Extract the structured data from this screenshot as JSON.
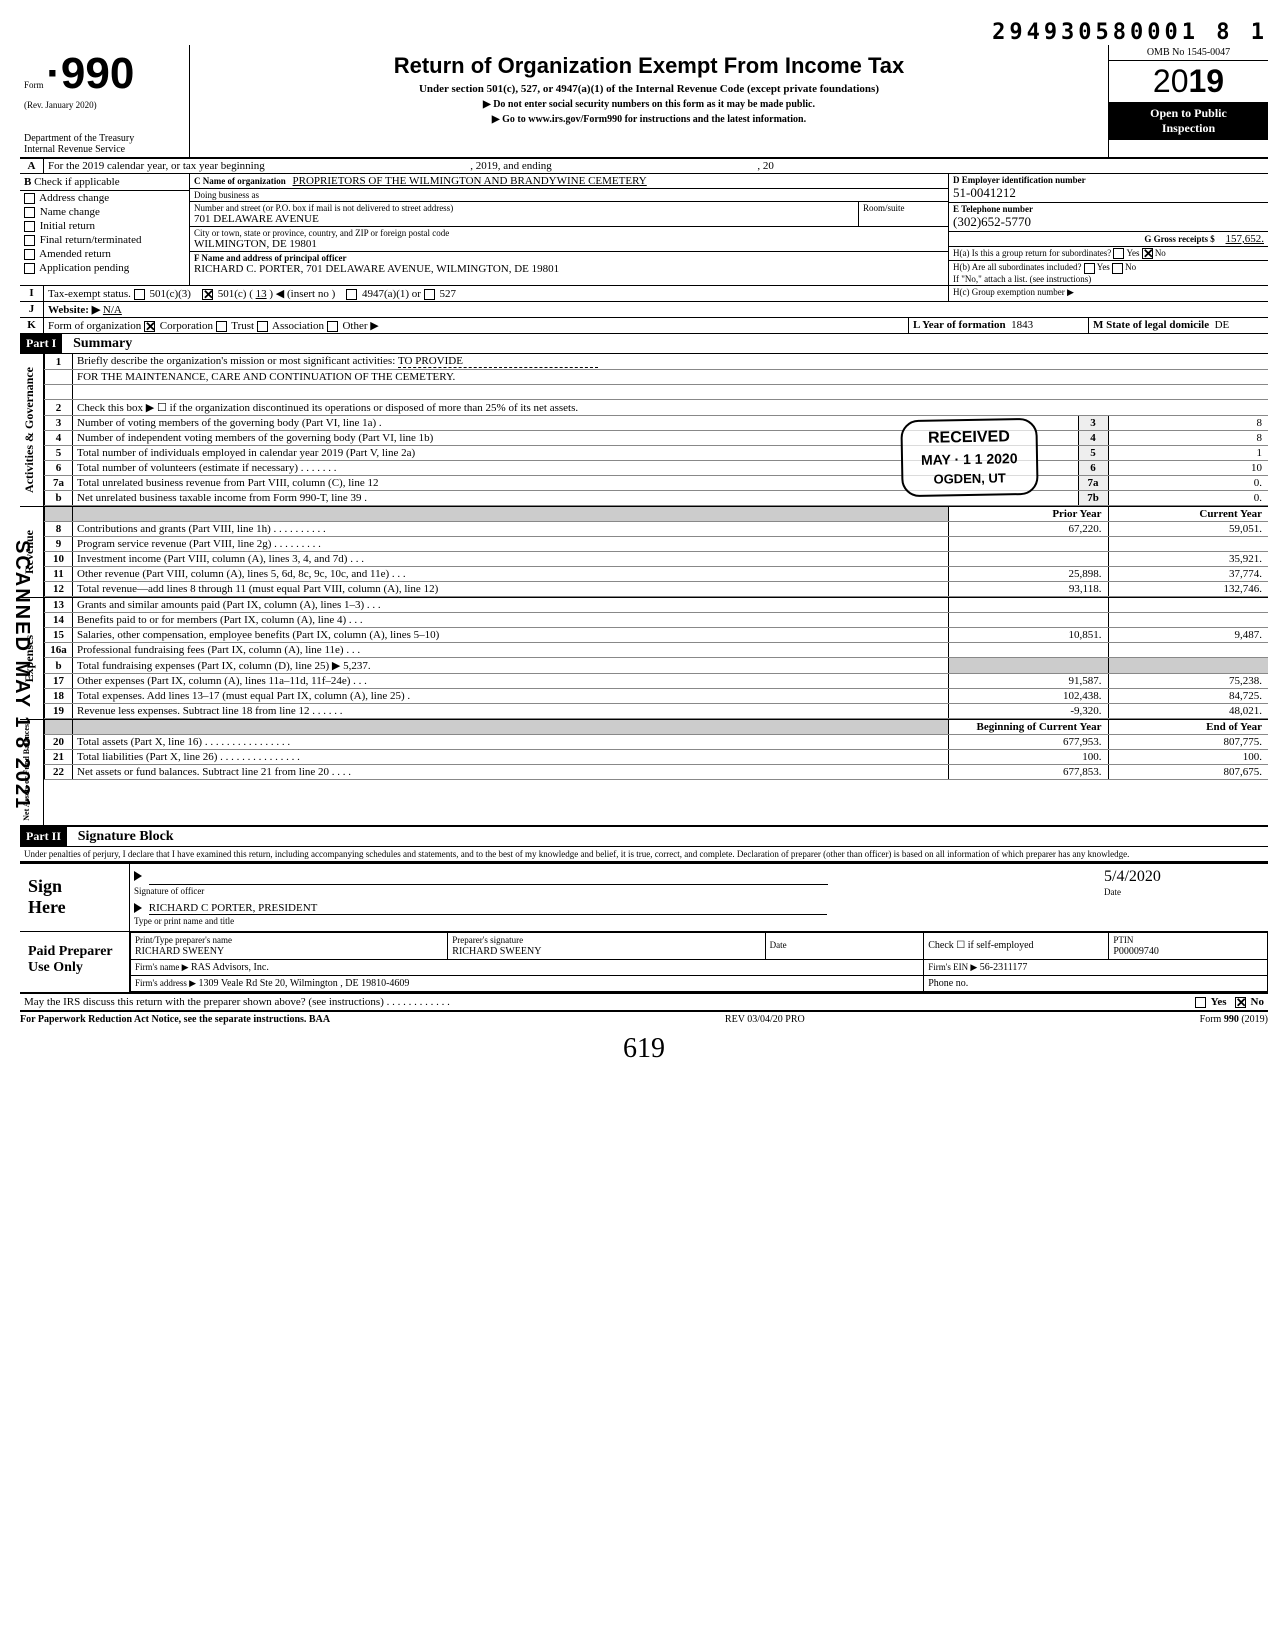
{
  "header_id": "294930580001 8  1",
  "form_number": "990",
  "form_prefix": "Form",
  "rev": "(Rev. January 2020)",
  "dept": "Department of the Treasury\nInternal Revenue Service",
  "title": "Return of Organization Exempt From Income Tax",
  "under": "Under section 501(c), 527, or 4947(a)(1) of the Internal Revenue Code (except private foundations)",
  "sub1": "▶ Do not enter social security numbers on this form as it may be made public.",
  "sub2": "▶ Go to www.irs.gov/Form990 for instructions and the latest information.",
  "omb": "OMB No 1545-0047",
  "year_prefix": "20",
  "year_bold": "19",
  "open_public": "Open to Public\nInspection",
  "rowA": {
    "label": "For the 2019 calendar year, or tax year beginning",
    "mid": ", 2019, and ending",
    "end": ", 20"
  },
  "rowB_label": "Check if applicable",
  "rowB_items": [
    "Address change",
    "Name change",
    "Initial return",
    "Final return/terminated",
    "Amended return",
    "Application pending"
  ],
  "boxC": {
    "lbl": "C Name of organization",
    "val": "PROPRIETORS OF THE WILMINGTON AND BRANDYWINE CEMETERY",
    "dba_lbl": "Doing business as",
    "addr_lbl": "Number and street (or P.O. box if mail is not delivered to street address)",
    "addr": "701 DELAWARE AVENUE",
    "room_lbl": "Room/suite",
    "city_lbl": "City or town, state or province, country, and ZIP or foreign postal code",
    "city": "WILMINGTON, DE 19801",
    "f_lbl": "F Name and address of principal officer",
    "f_val": "RICHARD C. PORTER, 701 DELAWARE AVENUE, WILMINGTON, DE 19801"
  },
  "boxD": {
    "lbl": "D Employer identification number",
    "val": "51-0041212"
  },
  "boxE": {
    "lbl": "E Telephone number",
    "val": "(302)652-5770"
  },
  "boxG": {
    "lbl": "G Gross receipts $",
    "val": "157,652."
  },
  "boxH": {
    "a": "H(a) Is this a group return for subordinates?",
    "b": "H(b) Are all subordinates included?",
    "b2": "If \"No,\" attach a list. (see instructions)",
    "c": "H(c) Group exemption number ▶",
    "yes": "Yes",
    "no": "No"
  },
  "rowI": {
    "lbl": "Tax-exempt status.",
    "c3": "501(c)(3)",
    "c": "501(c) (",
    "cn": "13",
    "insert": ") ◀ (insert no )",
    "a1": "4947(a)(1) or",
    "s527": "527"
  },
  "rowJ": {
    "lbl": "Website: ▶",
    "val": "N/A"
  },
  "rowK": {
    "lbl": "Form of organization",
    "corp": "Corporation",
    "trust": "Trust",
    "assoc": "Association",
    "other": "Other ▶",
    "l": "L Year of formation",
    "lval": "1843",
    "m": "M State of legal domicile",
    "mval": "DE"
  },
  "part1": {
    "hdr": "Part I",
    "title": "Summary"
  },
  "line1": {
    "lbl": "Briefly describe the organization's mission or most significant activities:",
    "val": "TO PROVIDE",
    "val2": "FOR THE MAINTENANCE, CARE AND CONTINUATION OF THE CEMETERY."
  },
  "line2": "Check this box ▶ ☐ if the organization discontinued its operations or disposed of more than 25% of its net assets.",
  "sideA": "Activities & Governance",
  "sideR": "Revenue",
  "sideE": "Expenses",
  "sideN": "Net Assets or\nFund Balances",
  "stamp": {
    "l1": "RECEIVED",
    "l2": "MAY · 1 1 2020",
    "l3": "OGDEN, UT"
  },
  "sidestamp": "SCANNED MAY 1 8 2021",
  "col_prior": "Prior Year",
  "col_current": "Current Year",
  "col_begin": "Beginning of Current Year",
  "col_end": "End of Year",
  "linesAG": [
    {
      "n": "3",
      "t": "Number of voting members of the governing body (Part VI, line 1a) .",
      "b": "3",
      "v": "8"
    },
    {
      "n": "4",
      "t": "Number of independent voting members of the governing body (Part VI, line 1b)",
      "b": "4",
      "v": "8"
    },
    {
      "n": "5",
      "t": "Total number of individuals employed in calendar year 2019 (Part V, line 2a)",
      "b": "5",
      "v": "1"
    },
    {
      "n": "6",
      "t": "Total number of volunteers (estimate if necessary)  . . . . . . .",
      "b": "6",
      "v": "10"
    },
    {
      "n": "7a",
      "t": "Total unrelated business revenue from Part VIII, column (C), line 12",
      "b": "7a",
      "v": "0."
    },
    {
      "n": "b",
      "t": "Net unrelated business taxable income from Form 990-T, line 39  .",
      "b": "7b",
      "v": "0."
    }
  ],
  "linesRev": [
    {
      "n": "8",
      "t": "Contributions and grants (Part VIII, line 1h) . . . . . . . . . .",
      "p": "67,220.",
      "c": "59,051."
    },
    {
      "n": "9",
      "t": "Program service revenue (Part VIII, line 2g)  . . . . . . . . .",
      "p": "",
      "c": ""
    },
    {
      "n": "10",
      "t": "Investment income (Part VIII, column (A), lines 3, 4, and 7d) . . .",
      "p": "",
      "c": "35,921."
    },
    {
      "n": "11",
      "t": "Other revenue (Part VIII, column (A), lines 5, 6d, 8c, 9c, 10c, and 11e) . . .",
      "p": "25,898.",
      "c": "37,774."
    },
    {
      "n": "12",
      "t": "Total revenue—add lines 8 through 11 (must equal Part VIII, column (A), line 12)",
      "p": "93,118.",
      "c": "132,746."
    }
  ],
  "linesExp": [
    {
      "n": "13",
      "t": "Grants and similar amounts paid (Part IX, column (A), lines 1–3) . . .",
      "p": "",
      "c": ""
    },
    {
      "n": "14",
      "t": "Benefits paid to or for members (Part IX, column (A), line 4) . . .",
      "p": "",
      "c": ""
    },
    {
      "n": "15",
      "t": "Salaries, other compensation, employee benefits (Part IX, column (A), lines 5–10)",
      "p": "10,851.",
      "c": "9,487."
    },
    {
      "n": "16a",
      "t": "Professional fundraising fees (Part IX, column (A), line 11e) . . .",
      "p": "",
      "c": ""
    },
    {
      "n": "b",
      "t": "Total fundraising expenses (Part IX, column (D), line 25) ▶   5,237.",
      "p": "shade",
      "c": "shade"
    },
    {
      "n": "17",
      "t": "Other expenses (Part IX, column (A), lines 11a–11d, 11f–24e)  . . .",
      "p": "91,587.",
      "c": "75,238."
    },
    {
      "n": "18",
      "t": "Total expenses. Add lines 13–17 (must equal Part IX, column (A), line 25)  .",
      "p": "102,438.",
      "c": "84,725."
    },
    {
      "n": "19",
      "t": "Revenue less expenses. Subtract line 18 from line 12 . . . . . .",
      "p": "-9,320.",
      "c": "48,021."
    }
  ],
  "linesNet": [
    {
      "n": "20",
      "t": "Total assets (Part X, line 16)  . . . . . . . . . . . . . . . .",
      "p": "677,953.",
      "c": "807,775."
    },
    {
      "n": "21",
      "t": "Total liabilities (Part X, line 26) . . . . . . . . . . . . . . .",
      "p": "100.",
      "c": "100."
    },
    {
      "n": "22",
      "t": "Net assets or fund balances. Subtract line 21 from line 20  . . . .",
      "p": "677,853.",
      "c": "807,675."
    }
  ],
  "part2": {
    "hdr": "Part II",
    "title": "Signature Block"
  },
  "penalties": "Under penalties of perjury, I declare that I have examined this return, including accompanying schedules and statements, and to the best of my knowledge and belief, it is true, correct, and complete. Declaration of preparer (other than officer) is based on all information of which preparer has any knowledge.",
  "sign": {
    "here": "Sign\nHere",
    "sig_lbl": "Signature of officer",
    "date_lbl": "Date",
    "date_val": "5/4/2020",
    "name": "RICHARD C PORTER, PRESIDENT",
    "name_lbl": "Type or print name and title"
  },
  "paid": {
    "hdr": "Paid\nPreparer\nUse Only",
    "c1": "Print/Type preparer's name",
    "v1": "RICHARD SWEENY",
    "c2": "Preparer's signature",
    "v2": "RICHARD SWEENY",
    "c3": "Date",
    "c4": "Check ☐ if\nself-employed",
    "c5": "PTIN",
    "v5": "P00009740",
    "firm_lbl": "Firm's name ▶",
    "firm": "RAS Advisors, Inc.",
    "ein_lbl": "Firm's EIN ▶",
    "ein": "56-2311177",
    "addr_lbl": "Firm's address ▶",
    "addr": "1309 Veale Rd Ste 20, Wilmington , DE 19810-4609",
    "ph_lbl": "Phone no."
  },
  "discuss": "May the IRS discuss this return with the preparer shown above? (see instructions)  . . . . . . . . . . . .",
  "discuss_yes": "Yes",
  "discuss_no": "No",
  "footer": {
    "l": "For Paperwork Reduction Act Notice, see the separate instructions. BAA",
    "m": "REV 03/04/20 PRO",
    "r": "Form 990 (2019)"
  },
  "handwritten": "619"
}
